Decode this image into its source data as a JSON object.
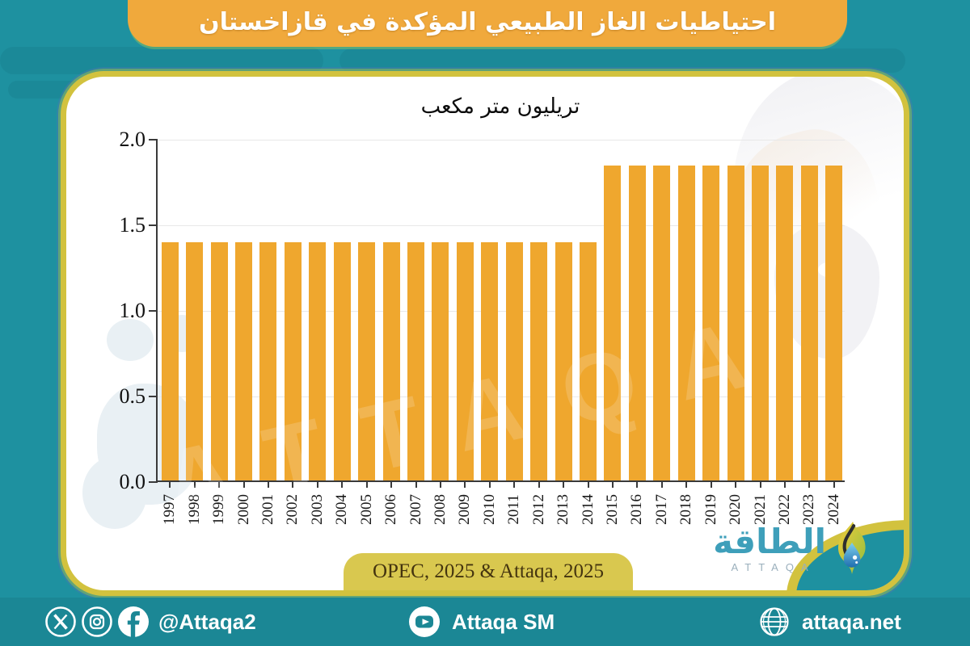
{
  "header": {
    "title": "احتياطيات الغاز الطبيعي المؤكدة في قازاخستان"
  },
  "card": {
    "source_label": "OPEC, 2025 & Attaqa, 2025"
  },
  "chart_data": {
    "type": "bar",
    "title": "تريليون متر مكعب",
    "categories": [
      "1997",
      "1998",
      "1999",
      "2000",
      "2001",
      "2002",
      "2003",
      "2004",
      "2005",
      "2006",
      "2007",
      "2008",
      "2009",
      "2010",
      "2011",
      "2012",
      "2013",
      "2014",
      "2015",
      "2016",
      "2017",
      "2018",
      "2019",
      "2020",
      "2021",
      "2022",
      "2023",
      "2024"
    ],
    "values": [
      1.39,
      1.39,
      1.39,
      1.39,
      1.39,
      1.39,
      1.39,
      1.39,
      1.39,
      1.39,
      1.39,
      1.39,
      1.39,
      1.39,
      1.39,
      1.39,
      1.39,
      1.39,
      1.84,
      1.84,
      1.84,
      1.84,
      1.84,
      1.84,
      1.84,
      1.84,
      1.84,
      1.84
    ],
    "xlabel": "",
    "ylabel": "",
    "ylim": [
      0.0,
      2.0
    ],
    "yticks": [
      0.0,
      0.5,
      1.0,
      1.5,
      2.0
    ],
    "grid": true,
    "legend": false,
    "bar_color": "#EFA72E"
  },
  "watermark": {
    "text": "ATTAQA"
  },
  "logo": {
    "arabic": "الطاقة",
    "latin": "ATTAQA"
  },
  "footer": {
    "social_handle": "@Attaqa2",
    "youtube_label": "Attaqa SM",
    "website": "attaqa.net"
  },
  "colors": {
    "background_teal": "#1E91A0",
    "footer_teal": "#1B8795",
    "header_orange": "#F0A93C",
    "bar_orange": "#EFA72E",
    "card_border_yellow": "#D2C23E",
    "source_pill_yellow": "#D9C84F",
    "logo_teal": "#3E9FBA"
  }
}
